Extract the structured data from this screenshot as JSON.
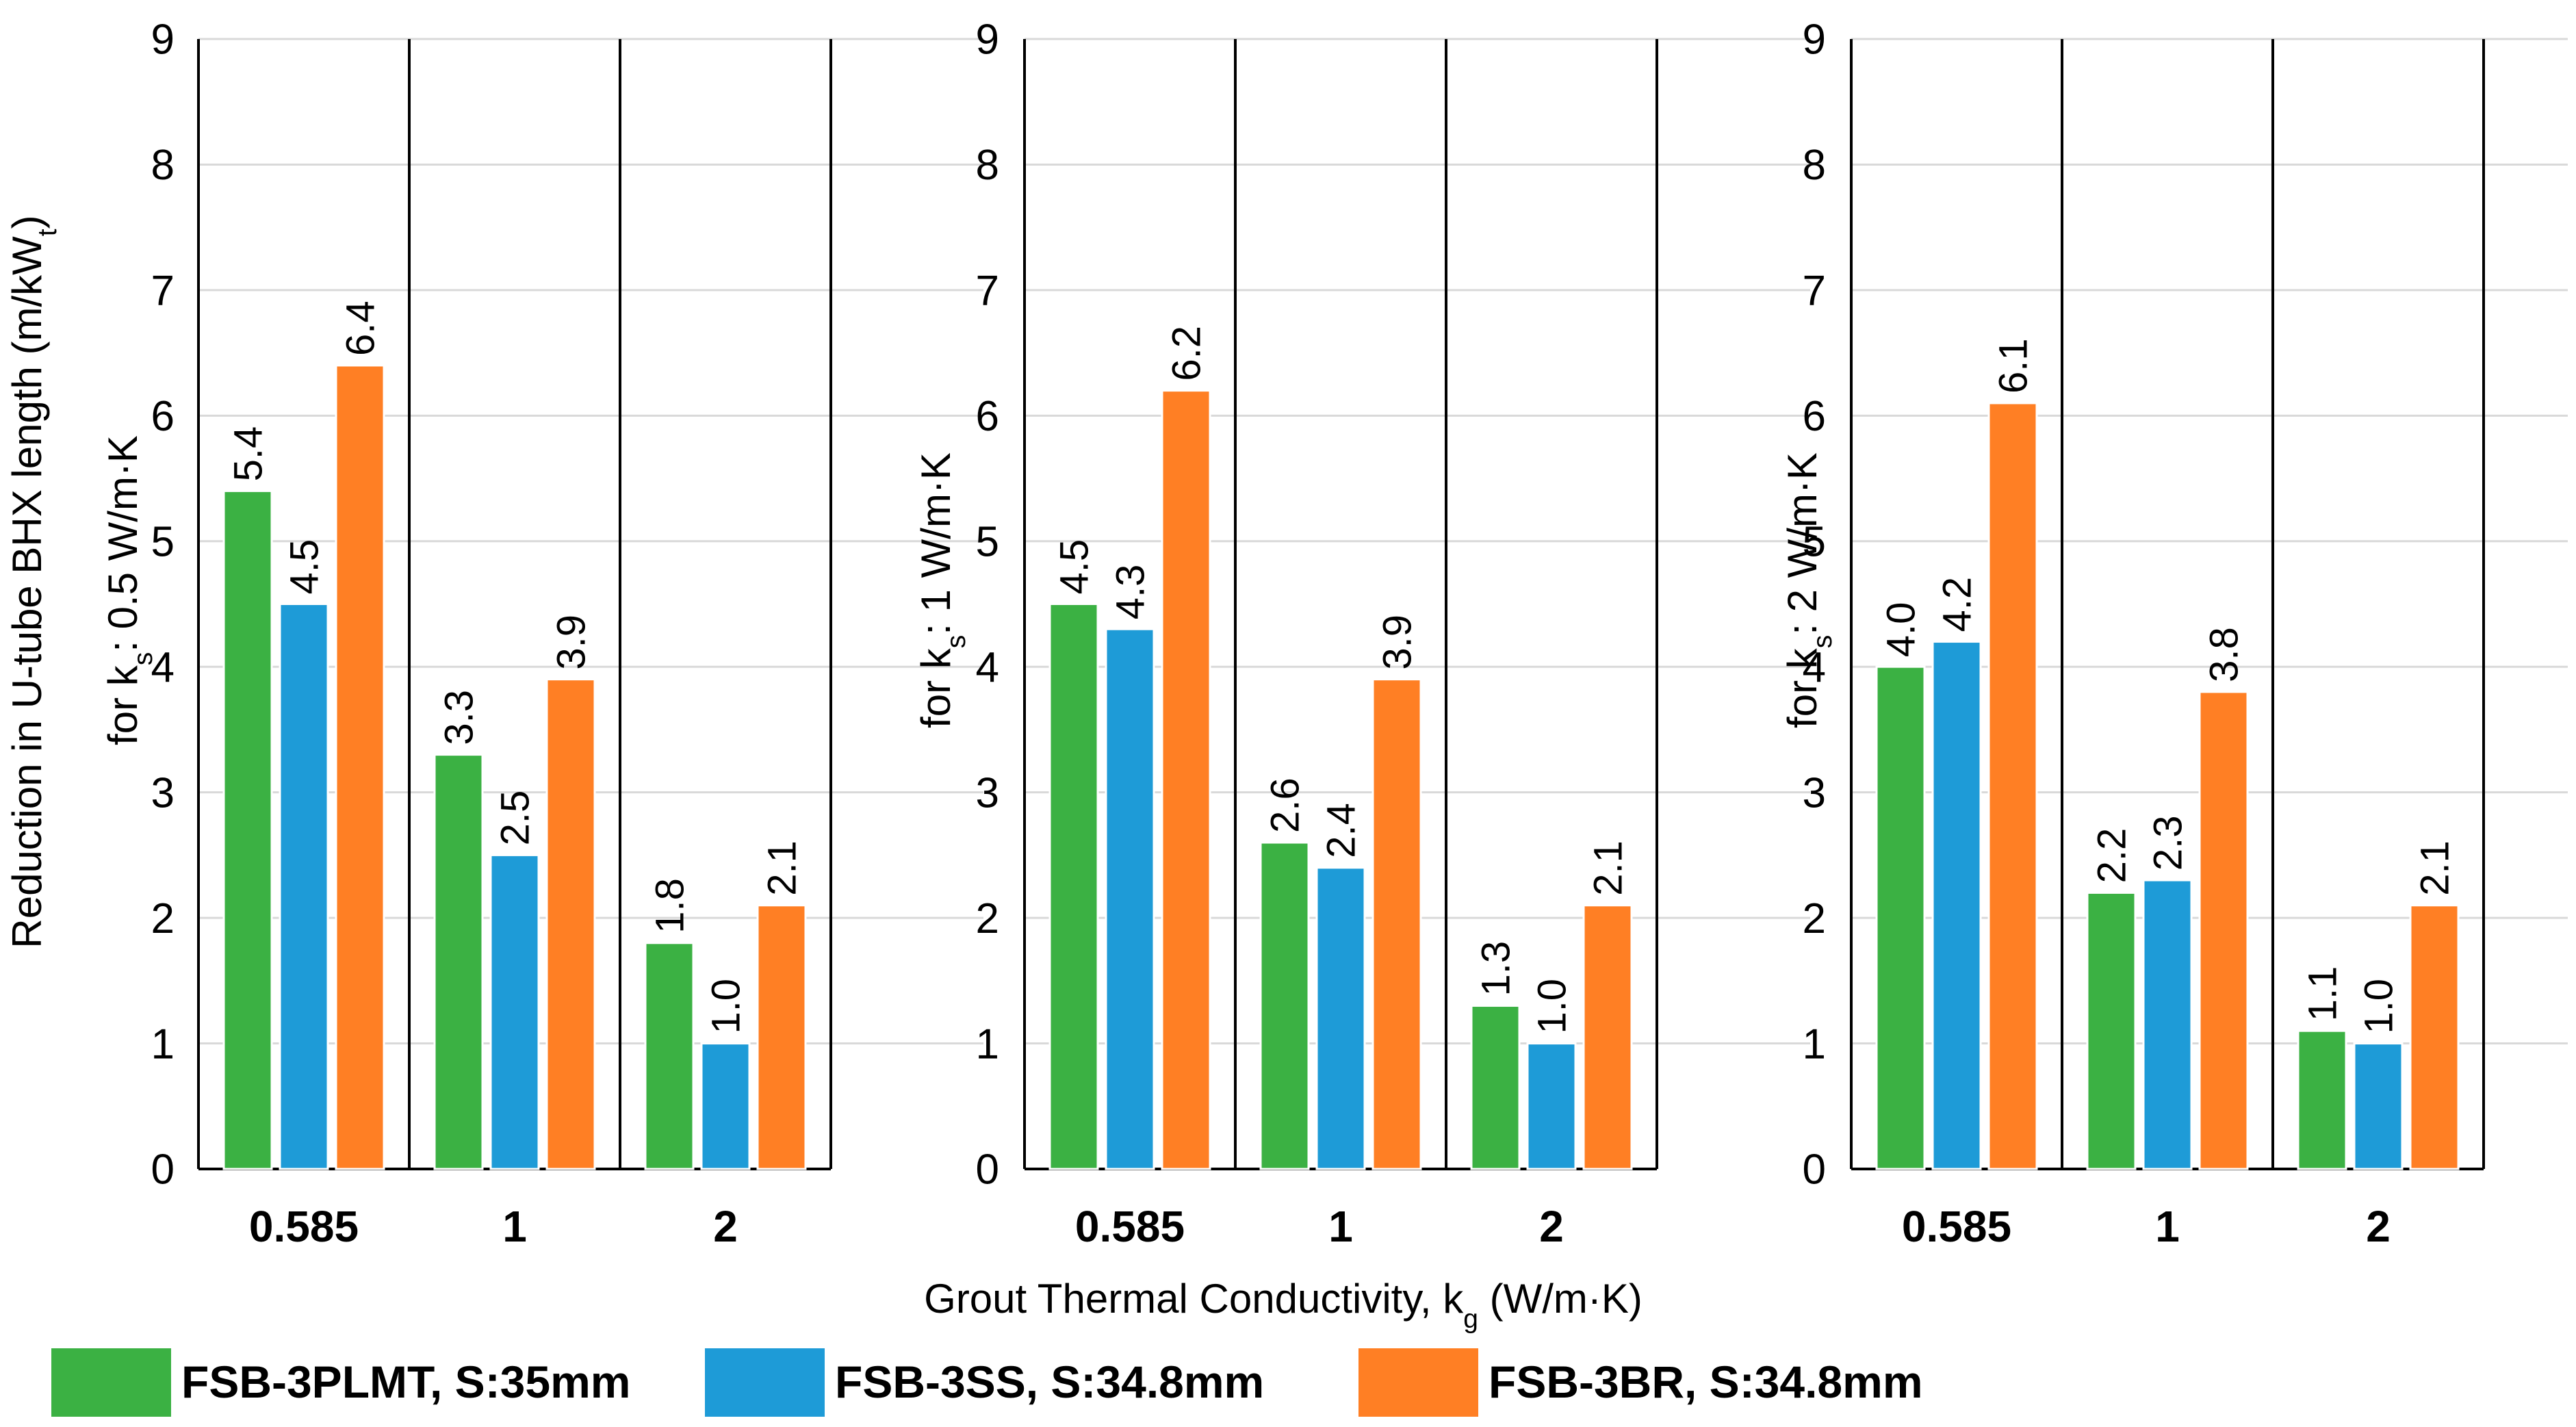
{
  "x_axis_title": {
    "prefix": "Grout Thermal Conductivity,  k",
    "sub": "g",
    "suffix": " (W/m·K)"
  },
  "y_axis_title": {
    "prefix": "Reduction in U-tube BHX length (m/kW",
    "sub": "t",
    "suffix": ")"
  },
  "legend": [
    {
      "label": "FSB-3PLMT, S:35mm",
      "color": "#3BB143"
    },
    {
      "label": "FSB-3SS, S:34.8mm",
      "color": "#1E9BD7"
    },
    {
      "label": "FSB-3BR, S:34.8mm",
      "color": "#FF7F24"
    }
  ],
  "chart_data": [
    {
      "type": "bar",
      "panel_label": {
        "prefix": "for k",
        "sub": "s",
        "suffix": ": 0.5 W/m·K"
      },
      "categories": [
        "0.585",
        "1",
        "2"
      ],
      "ylim": [
        0,
        9
      ],
      "yticks": [
        0,
        1,
        2,
        3,
        4,
        5,
        6,
        7,
        8,
        9
      ],
      "grid": true,
      "series": [
        {
          "name": "FSB-3PLMT, S:35mm",
          "values": [
            5.4,
            3.3,
            1.8
          ],
          "labels": [
            "5.4",
            "3.3",
            "1.8"
          ]
        },
        {
          "name": "FSB-3SS, S:34.8mm",
          "values": [
            4.5,
            2.5,
            1.0
          ],
          "labels": [
            "4.5",
            "2.5",
            "1.0"
          ]
        },
        {
          "name": "FSB-3BR, S:34.8mm",
          "values": [
            6.4,
            3.9,
            2.1
          ],
          "labels": [
            "6.4",
            "3.9",
            "2.1"
          ]
        }
      ]
    },
    {
      "type": "bar",
      "panel_label": {
        "prefix": "for k",
        "sub": "s",
        "suffix": ": 1 W/m·K"
      },
      "categories": [
        "0.585",
        "1",
        "2"
      ],
      "ylim": [
        0,
        9
      ],
      "yticks": [
        0,
        1,
        2,
        3,
        4,
        5,
        6,
        7,
        8,
        9
      ],
      "grid": true,
      "series": [
        {
          "name": "FSB-3PLMT, S:35mm",
          "values": [
            4.5,
            2.6,
            1.3
          ],
          "labels": [
            "4.5",
            "2.6",
            "1.3"
          ]
        },
        {
          "name": "FSB-3SS, S:34.8mm",
          "values": [
            4.3,
            2.4,
            1.0
          ],
          "labels": [
            "4.3",
            "2.4",
            "1.0"
          ]
        },
        {
          "name": "FSB-3BR, S:34.8mm",
          "values": [
            6.2,
            3.9,
            2.1
          ],
          "labels": [
            "6.2",
            "3.9",
            "2.1"
          ]
        }
      ]
    },
    {
      "type": "bar",
      "panel_label": {
        "prefix": "for k",
        "sub": "s",
        "suffix": ": 2 W/m·K"
      },
      "categories": [
        "0.585",
        "1",
        "2"
      ],
      "ylim": [
        0,
        9
      ],
      "yticks": [
        0,
        1,
        2,
        3,
        4,
        5,
        6,
        7,
        8,
        9
      ],
      "grid": true,
      "series": [
        {
          "name": "FSB-3PLMT, S:35mm",
          "values": [
            4.0,
            2.2,
            1.1
          ],
          "labels": [
            "4.0",
            "2.2",
            "1.1"
          ]
        },
        {
          "name": "FSB-3SS, S:34.8mm",
          "values": [
            4.2,
            2.3,
            1.0
          ],
          "labels": [
            "4.2",
            "2.3",
            "1.0"
          ]
        },
        {
          "name": "FSB-3BR, S:34.8mm",
          "values": [
            6.1,
            3.8,
            2.1
          ],
          "labels": [
            "6.1",
            "3.8",
            "2.1"
          ]
        }
      ]
    }
  ]
}
